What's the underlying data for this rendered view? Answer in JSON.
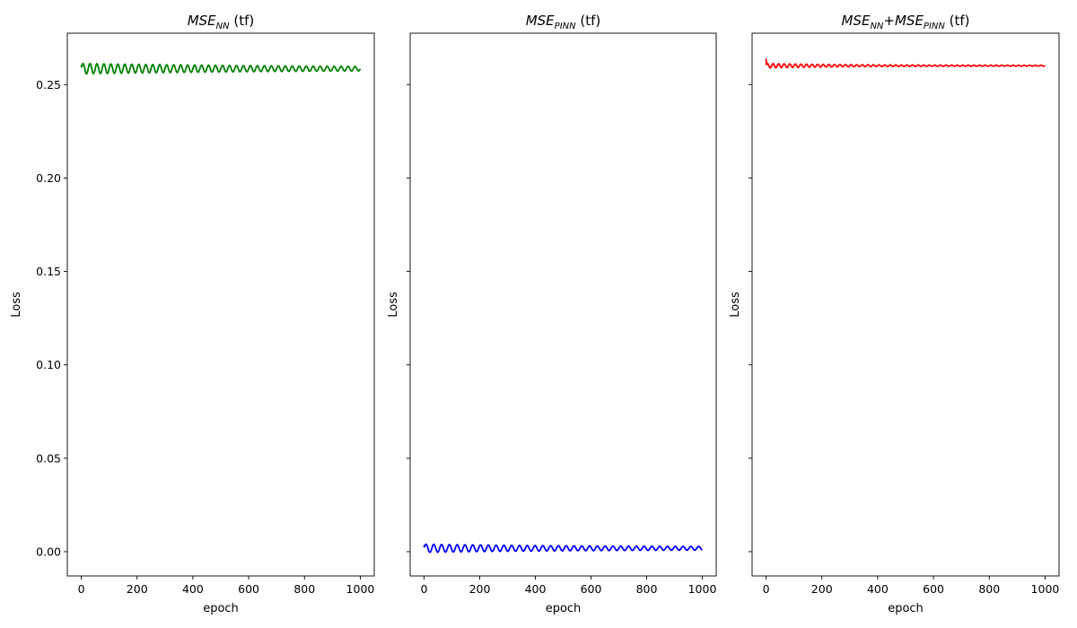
{
  "chart_data": [
    {
      "type": "line",
      "title": {
        "main": "MSE",
        "sub": "NN",
        "suffix": " (tf)"
      },
      "xlabel": "epoch",
      "ylabel": "Loss",
      "xlim": [
        -50,
        1050
      ],
      "ylim": [
        -0.013,
        0.2775
      ],
      "xticks": [
        0,
        200,
        400,
        600,
        800,
        1000
      ],
      "yticks": [
        0.0,
        0.05,
        0.1,
        0.15,
        0.2,
        0.25
      ],
      "yticklabels_visible": true,
      "color": "#008000",
      "series": [
        {
          "base": 0.2585,
          "amp0": 0.0028,
          "amp_min": 0.0004,
          "decay": 900,
          "period": 25,
          "start": 0.2605
        }
      ]
    },
    {
      "type": "line",
      "title": {
        "main": "MSE",
        "sub": "PINN",
        "suffix": " (tf)"
      },
      "xlabel": "epoch",
      "ylabel": "Loss",
      "xlim": [
        -50,
        1050
      ],
      "ylim": [
        -0.013,
        0.2775
      ],
      "xticks": [
        0,
        200,
        400,
        600,
        800,
        1000
      ],
      "yticks": [
        0.0,
        0.05,
        0.1,
        0.15,
        0.2,
        0.25
      ],
      "yticklabels_visible": false,
      "color": "#0000ff",
      "series": [
        {
          "base": 0.0018,
          "amp0": 0.0022,
          "amp_min": 0.0007,
          "decay": 600,
          "period": 28,
          "start": 0.0035
        }
      ]
    },
    {
      "type": "line",
      "title": {
        "main": "MSE",
        "sub": "NN",
        "mid": "+MSE",
        "sub2": "PINN",
        "suffix": " (tf)"
      },
      "xlabel": "epoch",
      "ylabel": "Loss",
      "xlim": [
        -50,
        1050
      ],
      "ylim": [
        -0.013,
        0.2775
      ],
      "xticks": [
        0,
        200,
        400,
        600,
        800,
        1000
      ],
      "yticks": [
        0.0,
        0.05,
        0.1,
        0.15,
        0.2,
        0.25
      ],
      "yticklabels_visible": false,
      "color": "#ff0000",
      "series": [
        {
          "base": 0.2601,
          "amp0": 0.0012,
          "amp_min": 0.0002,
          "decay": 300,
          "period": 20,
          "start": 0.264
        }
      ]
    }
  ]
}
